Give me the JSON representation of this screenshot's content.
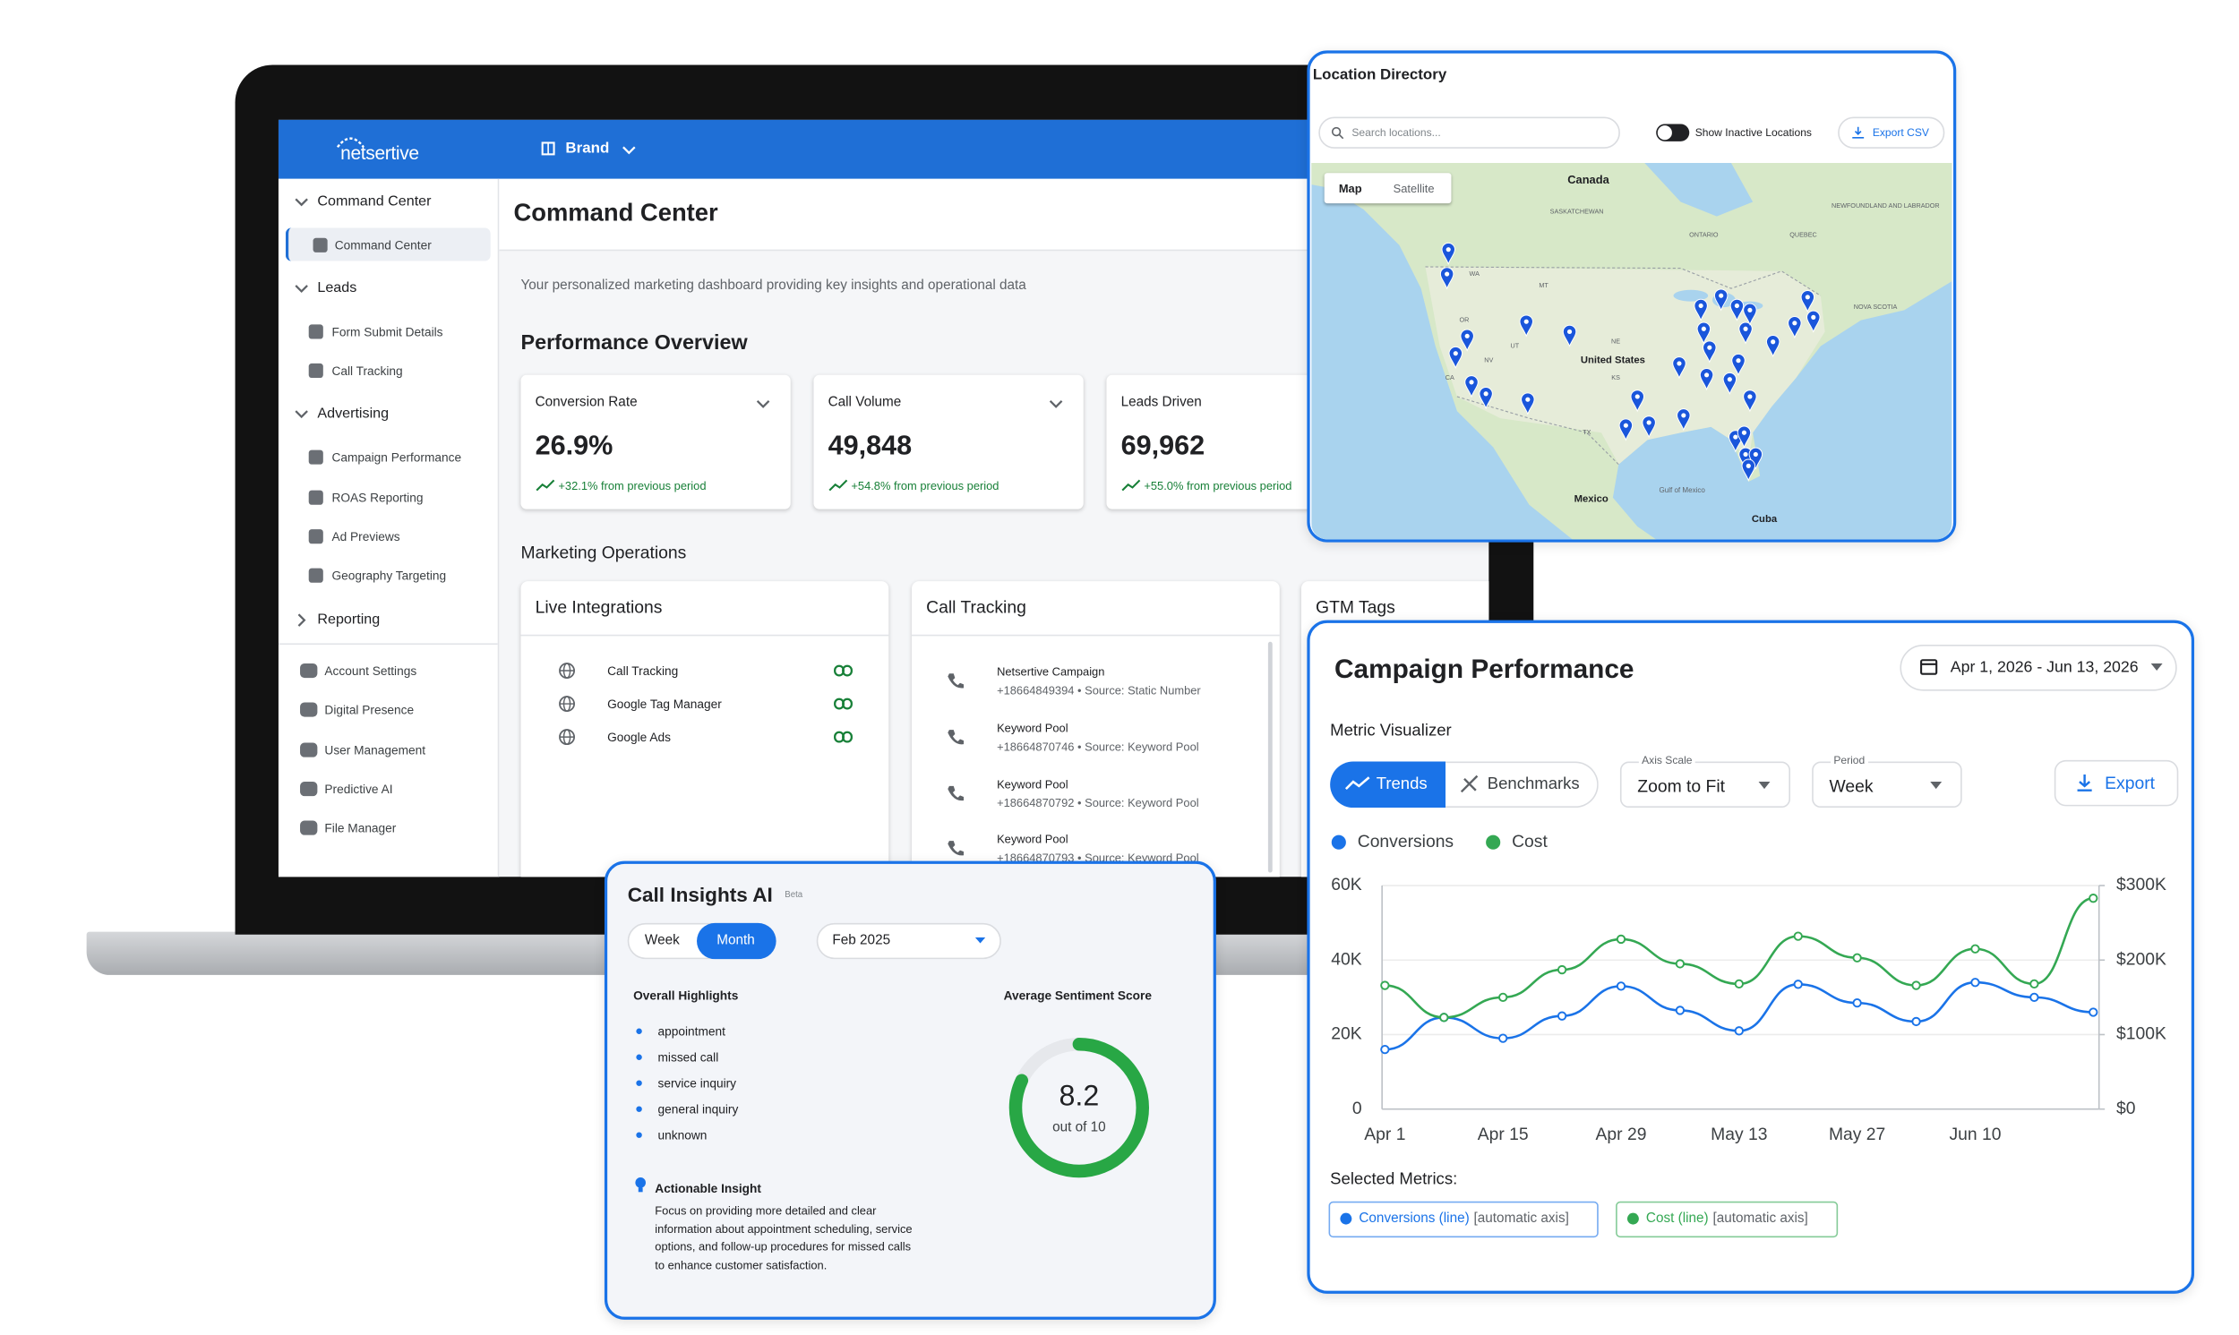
{
  "laptop": {
    "header": {
      "logo": "netsertive",
      "brand": "Brand"
    },
    "sidebar": {
      "sections": [
        {
          "label": "Command Center",
          "items": [
            "Command Center"
          ]
        },
        {
          "label": "Leads",
          "items": [
            "Form Submit Details",
            "Call Tracking"
          ]
        },
        {
          "label": "Advertising",
          "items": [
            "Campaign Performance",
            "ROAS Reporting",
            "Ad Previews",
            "Geography Targeting"
          ]
        },
        {
          "label": "Reporting"
        }
      ],
      "footer_items": [
        "Account Settings",
        "Digital Presence",
        "User Management",
        "Predictive AI",
        "File Manager"
      ]
    },
    "page_title": "Command Center",
    "description": "Your personalized marketing dashboard providing key insights and operational data",
    "performance_title": "Performance Overview",
    "kpis": [
      {
        "label": "Conversion Rate",
        "value": "26.9%",
        "change": "+32.1% from previous period"
      },
      {
        "label": "Call Volume",
        "value": "49,848",
        "change": "+54.8% from previous period"
      },
      {
        "label": "Leads Driven",
        "value": "69,962",
        "change": "+55.0% from previous period"
      }
    ],
    "operations_title": "Marketing Operations",
    "live_integrations": {
      "title": "Live Integrations",
      "items": [
        "Call Tracking",
        "Google Tag Manager",
        "Google Ads"
      ]
    },
    "call_tracking": {
      "title": "Call Tracking",
      "items": [
        {
          "name": "Netsertive Campaign",
          "detail": "+18664849394 • Source: Static Number"
        },
        {
          "name": "Keyword Pool",
          "detail": "+18664870746 • Source: Keyword Pool"
        },
        {
          "name": "Keyword Pool",
          "detail": "+18664870792 • Source: Keyword Pool"
        },
        {
          "name": "Keyword Pool",
          "detail": "+18664870793 • Source: Keyword Pool"
        }
      ]
    },
    "gtm_title": "GTM Tags"
  },
  "location_directory": {
    "title": "Location Directory",
    "search_placeholder": "Search locations...",
    "toggle_label": "Show Inactive Locations",
    "export": "Export CSV",
    "tabs": [
      "Map",
      "Satellite"
    ],
    "map_labels": [
      "Canada",
      "SASKATCHEWAN",
      "ONTARIO",
      "QUEBEC",
      "NEWFOUNDLAND AND LABRADOR",
      "NOVA SCOTIA",
      "WA",
      "MT",
      "OR",
      "NV",
      "UT",
      "CA",
      "NE",
      "KS",
      "United States",
      "TX",
      "Gulf of Mexico",
      "Mexico",
      "Cuba"
    ]
  },
  "call_insights": {
    "title": "Call Insights AI",
    "badge": "Beta",
    "periods": [
      "Week",
      "Month"
    ],
    "month": "Feb 2025",
    "highlights_title": "Overall Highlights",
    "highlights": [
      "appointment",
      "missed call",
      "service inquiry",
      "general inquiry",
      "unknown"
    ],
    "sentiment_title": "Average Sentiment Score",
    "score": 8.2,
    "score_max": 10,
    "score_caption": "out of 10",
    "insight_title": "Actionable Insight",
    "insight": "Focus on providing more detailed and clear information about appointment scheduling, service options, and follow-up procedures for missed calls to enhance customer satisfaction."
  },
  "campaign_panel": {
    "date_range": "Apr 1, 2026 - Jun 13, 2026",
    "subtitle": "Metric Visualizer",
    "tabs": [
      "Trends",
      "Benchmarks"
    ],
    "axis_scale": {
      "label": "Axis Scale",
      "value": "Zoom to Fit"
    },
    "period": {
      "label": "Period",
      "value": "Week"
    },
    "export": "Export",
    "selected_title": "Selected Metrics:",
    "selected": [
      {
        "name": "Conversions (line)",
        "note": "[automatic axis]"
      },
      {
        "name": "Cost (line)",
        "note": "[automatic axis]"
      }
    ]
  },
  "chart_data": {
    "type": "line",
    "title": "Campaign Performance",
    "categories": [
      "Apr 1",
      null,
      "Apr 15",
      null,
      "Apr 29",
      null,
      "May 13",
      null,
      "May 27",
      null,
      "Jun 10",
      null,
      null
    ],
    "series": [
      {
        "name": "Conversions",
        "color": "#1a73e8",
        "values": [
          16000,
          24600,
          19000,
          25000,
          33000,
          26500,
          21000,
          33500,
          28500,
          23500,
          34000,
          30000,
          26000
        ]
      },
      {
        "name": "Cost",
        "color": "#34a853",
        "axis": "y2",
        "values": [
          166000,
          123000,
          150000,
          187000,
          228000,
          195000,
          168000,
          232000,
          203000,
          166000,
          215000,
          168000,
          283000
        ]
      }
    ],
    "ylim": [
      0,
      60000
    ],
    "yticks": [
      0,
      {
        "value": 20000,
        "label": "20K"
      },
      {
        "value": 40000,
        "label": "40K"
      },
      {
        "value": 60000,
        "label": "60K"
      }
    ],
    "y2lim": [
      0,
      300000
    ],
    "y2ticks": [
      {
        "value": 0,
        "label": "$0"
      },
      {
        "value": 100000,
        "label": "$100K"
      },
      {
        "value": 200000,
        "label": "$200K"
      },
      {
        "value": 300000,
        "label": "$300K"
      }
    ],
    "grid": true
  }
}
